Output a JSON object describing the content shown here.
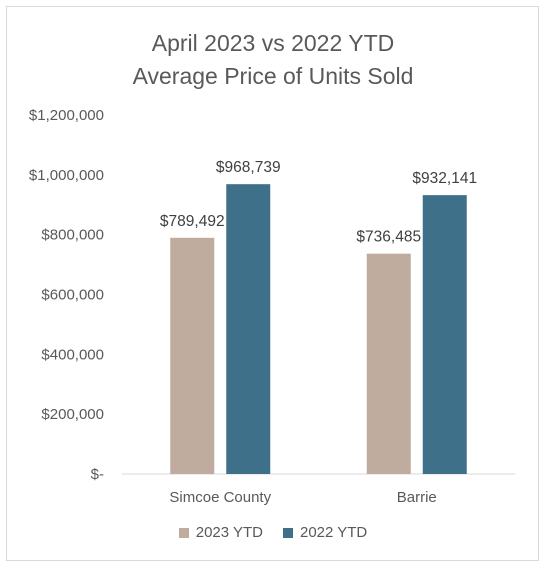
{
  "chart_data": {
    "type": "bar",
    "title_lines": [
      "April 2023 vs 2022 YTD",
      "Average Price of Units Sold"
    ],
    "categories": [
      "Simcoe County",
      "Barrie"
    ],
    "series": [
      {
        "name": "2023 YTD",
        "values": [
          789492,
          736485
        ],
        "labels": [
          "$789,492",
          "$736,485"
        ],
        "color": "#bfac9e"
      },
      {
        "name": "2022 YTD",
        "values": [
          968739,
          932141
        ],
        "labels": [
          "$968,739",
          "$932,141"
        ],
        "color": "#3e7089"
      }
    ],
    "ylim": [
      0,
      1200000
    ],
    "yticks": [
      {
        "value": 0,
        "label": "$-"
      },
      {
        "value": 200000,
        "label": "$200,000"
      },
      {
        "value": 400000,
        "label": "$400,000"
      },
      {
        "value": 600000,
        "label": "$600,000"
      },
      {
        "value": 800000,
        "label": "$800,000"
      },
      {
        "value": 1000000,
        "label": "$1,000,000"
      },
      {
        "value": 1200000,
        "label": "$1,200,000"
      }
    ],
    "grid": false,
    "legend_position": "bottom"
  }
}
